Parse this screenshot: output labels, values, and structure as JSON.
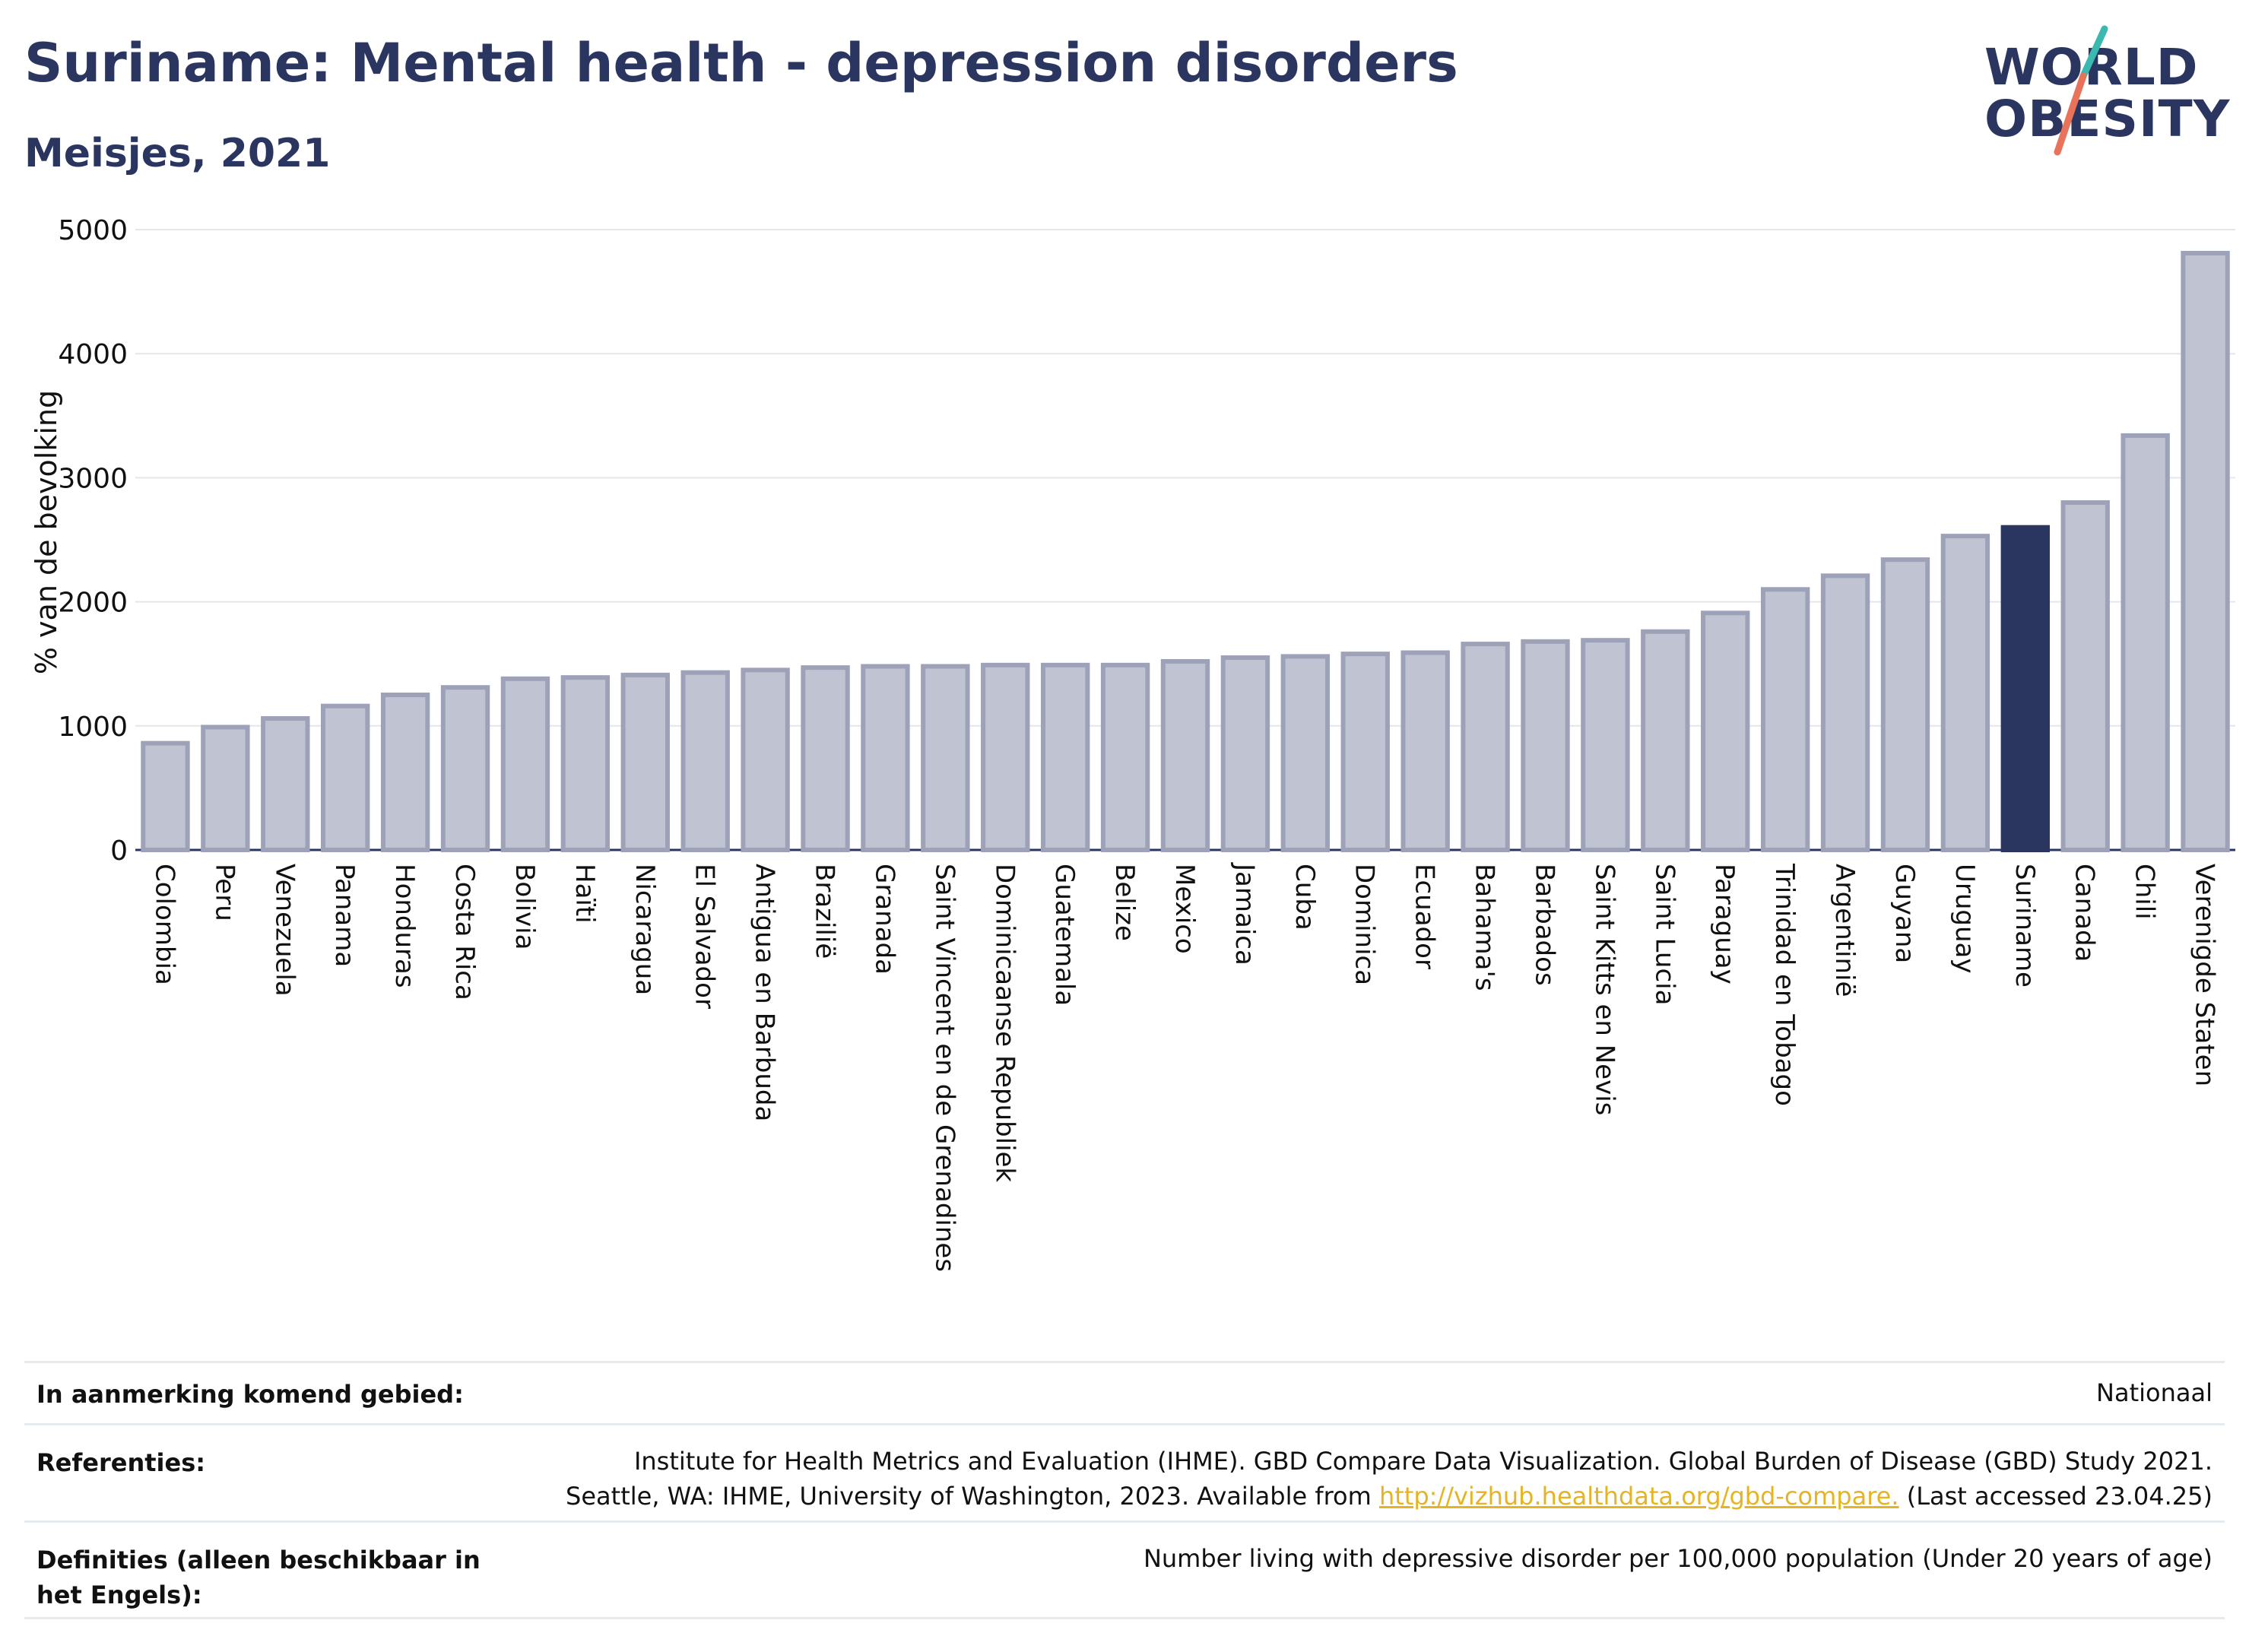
{
  "header": {
    "title": "Suriname: Mental health - depression disorders",
    "subtitle": "Meisjes, 2021"
  },
  "logo": {
    "line1": "WORLD",
    "line2": "OBESITY",
    "accent_teal": "#3bb8b0",
    "accent_red": "#e8735a"
  },
  "colors": {
    "bar_default": "#c0c3d1",
    "bar_default_border": "#9ea2b8",
    "bar_highlight": "#2b3660",
    "text": "#2b3660"
  },
  "chart_data": {
    "type": "bar",
    "ylabel": "% van de bevolking",
    "ylim": [
      0,
      5000
    ],
    "yticks": [
      "0",
      "1000",
      "2000",
      "3000",
      "4000",
      "5000"
    ],
    "grid": true,
    "highlight": "Suriname",
    "categories": [
      "Colombia",
      "Peru",
      "Venezuela",
      "Panama",
      "Honduras",
      "Costa Rica",
      "Bolivia",
      "Haïti",
      "Nicaragua",
      "El Salvador",
      "Antigua en Barbuda",
      "Brazilië",
      "Granada",
      "Saint Vincent en de Grenadines",
      "Dominicaanse Republiek",
      "Guatemala",
      "Belize",
      "Mexico",
      "Jamaica",
      "Cuba",
      "Dominica",
      "Ecuador",
      "Bahama's",
      "Barbados",
      "Saint Kitts en Nevis",
      "Saint Lucia",
      "Paraguay",
      "Trinidad en Tobago",
      "Argentinië",
      "Guyana",
      "Uruguay",
      "Suriname",
      "Canada",
      "Chili",
      "Verenigde Staten"
    ],
    "values": [
      860,
      990,
      1060,
      1160,
      1250,
      1310,
      1380,
      1390,
      1410,
      1430,
      1450,
      1470,
      1480,
      1480,
      1490,
      1490,
      1490,
      1520,
      1550,
      1560,
      1580,
      1590,
      1660,
      1680,
      1690,
      1760,
      1910,
      2100,
      2210,
      2340,
      2530,
      2600,
      2800,
      3340,
      4810
    ]
  },
  "meta": {
    "area_label": "In aanmerking komend gebied:",
    "area_value": "Nationaal",
    "refs_label": "Referenties:",
    "refs_line1": "Institute for Health Metrics and Evaluation (IHME). GBD Compare Data Visualization. Global Burden of Disease (GBD) Study 2021.",
    "refs_line2_pre": "Seattle, WA: IHME, University of Washington, 2023. Available from ",
    "refs_link": "http://vizhub.healthdata.org/gbd-compare.",
    "refs_line2_post": " (Last accessed 23.04.25)",
    "def_label": "Definities (alleen beschikbaar in het Engels):",
    "def_value": "Number living with depressive disorder per 100,000 population (Under 20 years of age)"
  }
}
